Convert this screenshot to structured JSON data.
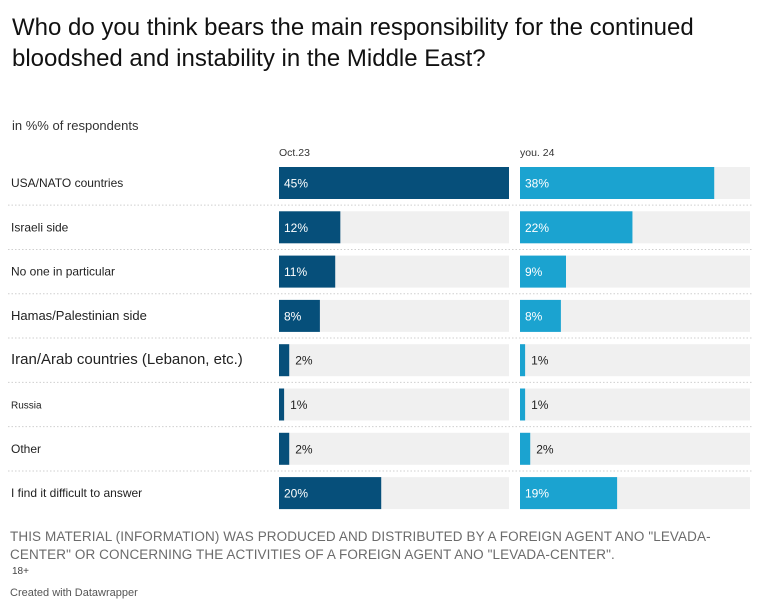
{
  "title": "Who do you think bears the main responsibility for the continued bloodshed and instability in the Middle East?",
  "subtitle": "in %% of respondents",
  "notes": "THIS MATERIAL (INFORMATION) WAS PRODUCED AND DISTRIBUTED BY A FOREIGN AGENT ANO \"LEVADA-CENTER\" OR CONCERNING THE ACTIVITIES OF A FOREIGN AGENT ANO \"LEVADA-CENTER\".",
  "age_mark": "18+",
  "credit": "Created with Datawrapper",
  "colors": {
    "dark": "#064f7a",
    "light": "#1ba3d0",
    "track": "#f0f0f0"
  },
  "chart_data": {
    "type": "bar",
    "orientation": "horizontal",
    "categories": [
      "USA/NATO countries",
      "Israeli side",
      "No one in particular",
      "Hamas/Palestinian side",
      "Iran/Arab countries (Lebanon, etc.)",
      "Russia",
      "Other",
      "I find it difficult to answer"
    ],
    "series": [
      {
        "name": "Oct.23",
        "values": [
          45,
          12,
          11,
          8,
          2,
          1,
          2,
          20
        ],
        "color": "#064f7a"
      },
      {
        "name": "you. 24",
        "values": [
          38,
          22,
          9,
          8,
          1,
          1,
          2,
          19
        ],
        "color": "#1ba3d0"
      }
    ],
    "xlim": [
      0,
      45
    ],
    "value_suffix": "%"
  }
}
